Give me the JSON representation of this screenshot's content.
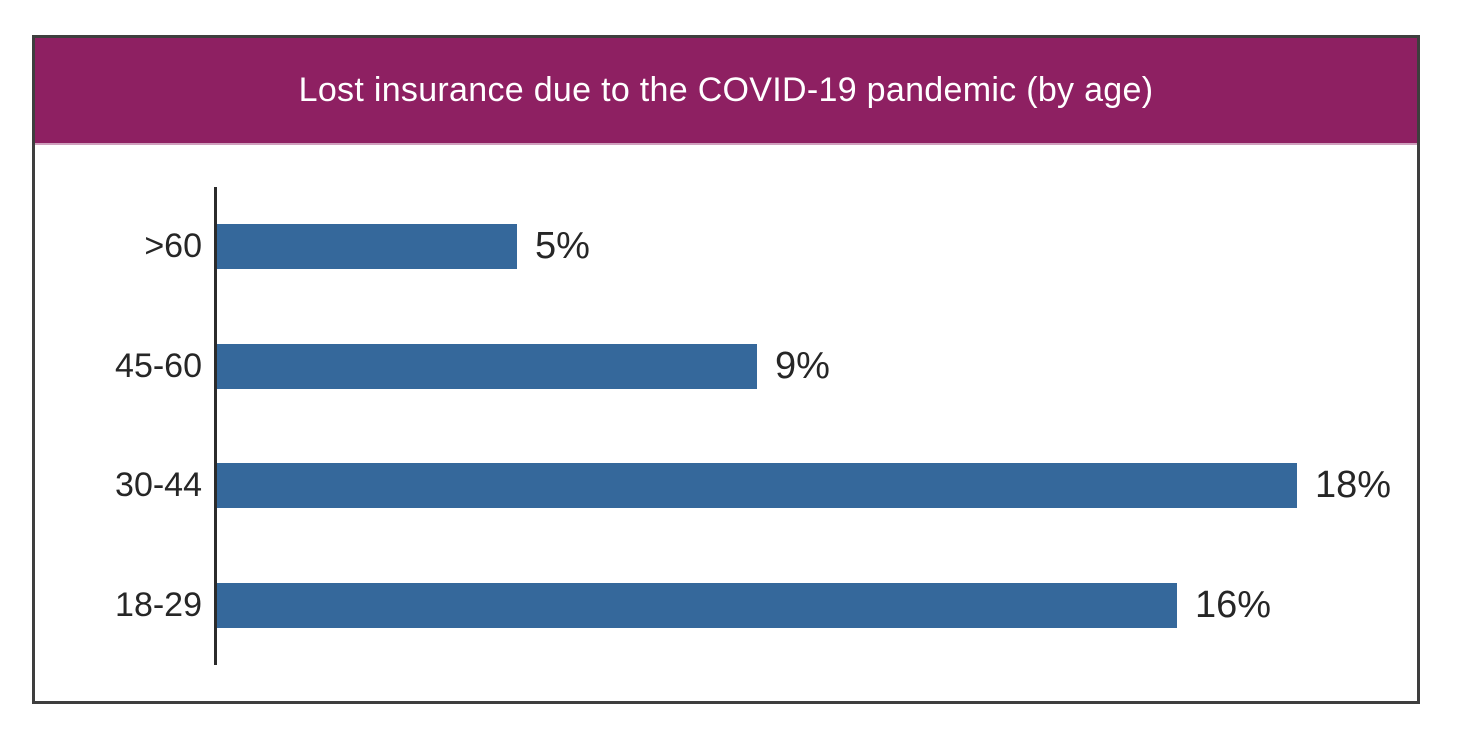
{
  "chart_data": {
    "type": "bar",
    "orientation": "horizontal",
    "title": "Lost insurance due to the COVID-19 pandemic (by age)",
    "categories": [
      ">60",
      "45-60",
      "30-44",
      "18-29"
    ],
    "values": [
      5,
      9,
      18,
      16
    ],
    "value_labels": [
      "5%",
      "9%",
      "18%",
      "16%"
    ],
    "xlabel": "",
    "ylabel": "",
    "xlim": [
      0,
      20
    ],
    "grid": false,
    "legend": "none",
    "colors": {
      "bar": "#35689B",
      "header_background": "#8E2062",
      "title_text": "#FFFFFF",
      "axis_line": "#2B2B2B",
      "label_text": "#262626",
      "frame_border": "#3E3E3E"
    }
  }
}
